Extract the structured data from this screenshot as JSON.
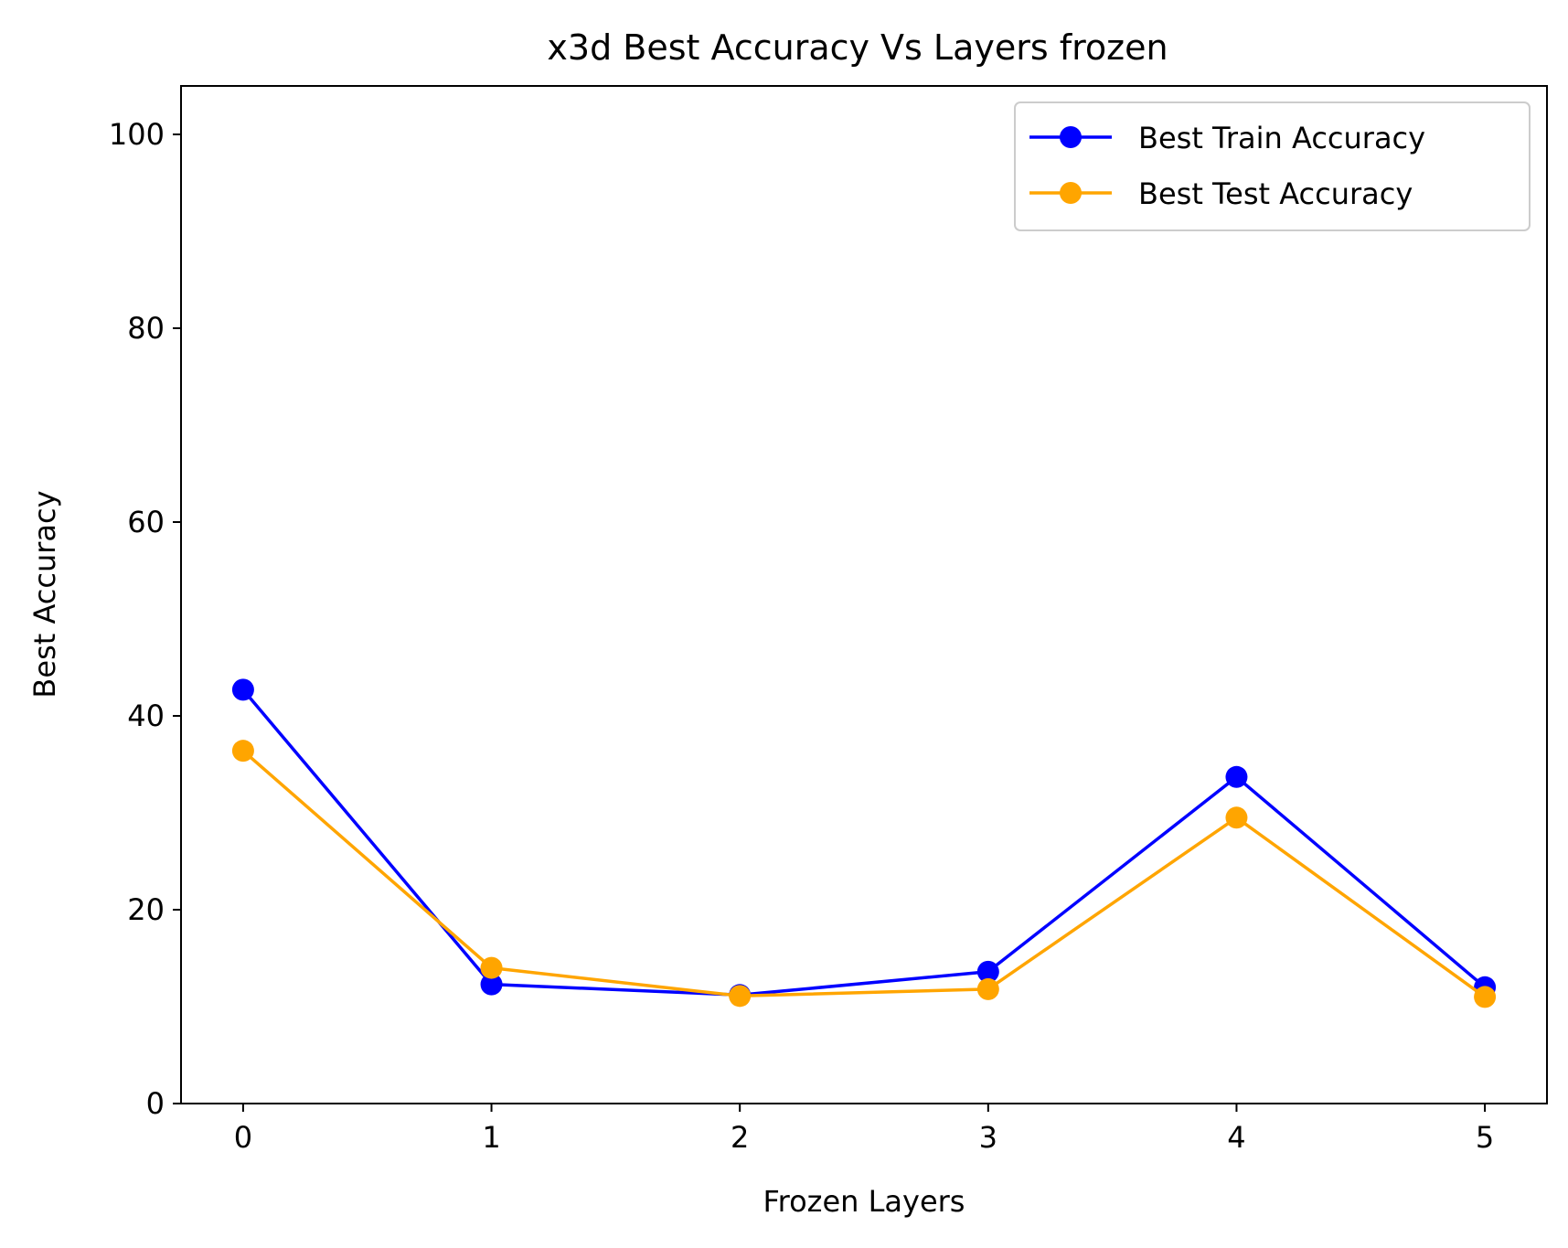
{
  "chart_data": {
    "type": "line",
    "title": "x3d Best Accuracy Vs Layers frozen",
    "xlabel": "Frozen Layers",
    "ylabel": "Best Accuracy",
    "x": [
      0,
      1,
      2,
      3,
      4,
      5
    ],
    "xticks": [
      "0",
      "1",
      "2",
      "3",
      "4",
      "5"
    ],
    "yticks": [
      "0",
      "20",
      "40",
      "60",
      "80",
      "100"
    ],
    "xlim": [
      -0.25,
      5.25
    ],
    "ylim": [
      0,
      105
    ],
    "grid": false,
    "legend_position": "top-right",
    "series": [
      {
        "name": "Best Train Accuracy",
        "color": "#0000ff",
        "marker": "circle",
        "values": [
          42.7,
          12.3,
          11.2,
          13.6,
          33.7,
          12.0
        ]
      },
      {
        "name": "Best Test Accuracy",
        "color": "#ffa500",
        "marker": "circle",
        "values": [
          36.4,
          14.0,
          11.1,
          11.8,
          29.5,
          11.0
        ]
      }
    ]
  }
}
